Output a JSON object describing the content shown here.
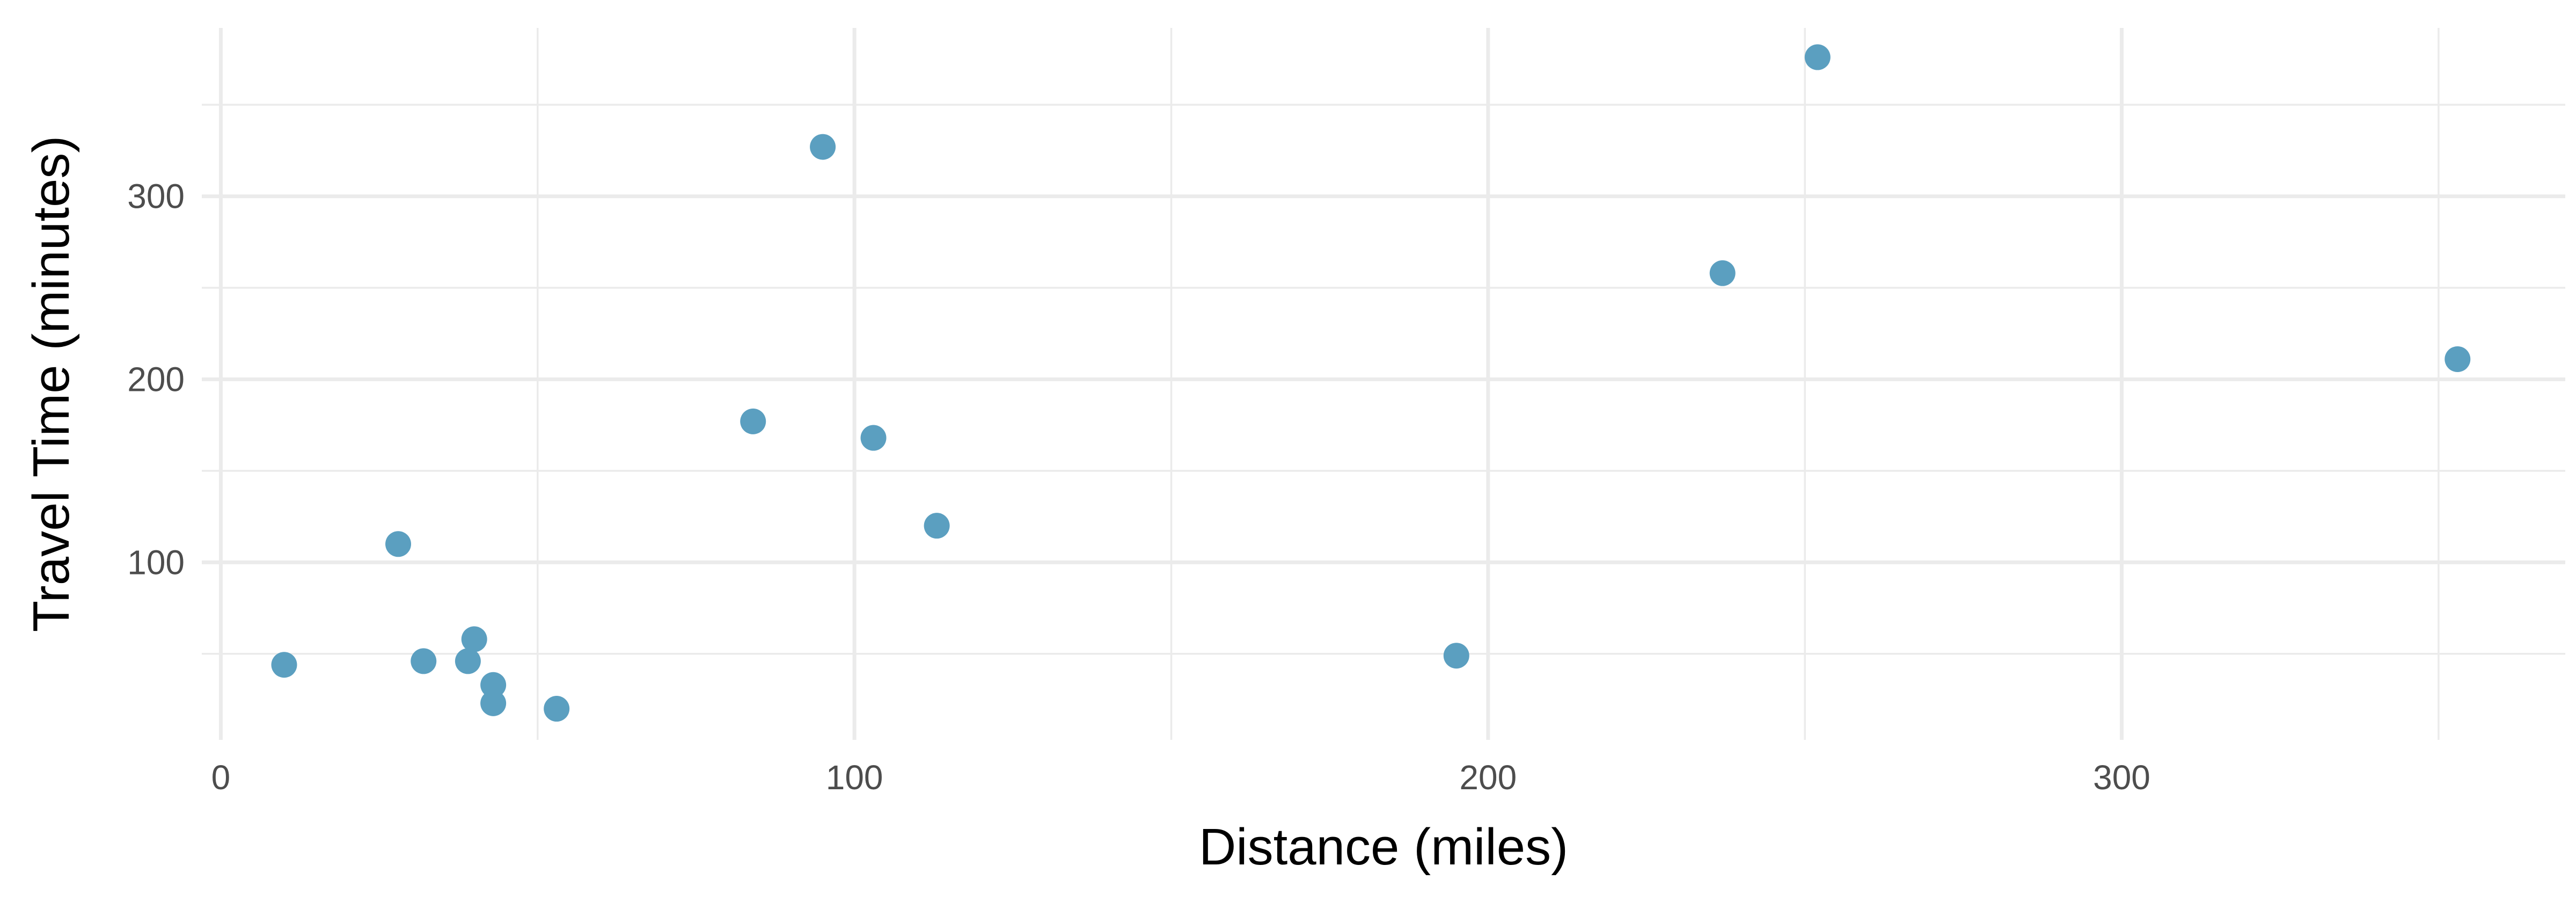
{
  "chart_data": {
    "type": "scatter",
    "xlabel": "Distance (miles)",
    "ylabel": "Travel Time (minutes)",
    "xlim": [
      -3,
      370
    ],
    "ylim": [
      3,
      392
    ],
    "x_ticks": [
      0,
      100,
      200,
      300
    ],
    "y_ticks": [
      100,
      200,
      300
    ],
    "x_minor": [
      50,
      150,
      250,
      350
    ],
    "y_minor": [
      50,
      150,
      250,
      350
    ],
    "grid": true,
    "point_color": "#5b9fc0",
    "x": [
      10,
      28,
      32,
      39,
      40,
      43,
      43,
      53,
      84,
      95,
      103,
      113,
      195,
      237,
      252,
      353
    ],
    "y": [
      44,
      110,
      46,
      46,
      58,
      33,
      23,
      20,
      177,
      327,
      168,
      120,
      49,
      258,
      376,
      211
    ]
  }
}
